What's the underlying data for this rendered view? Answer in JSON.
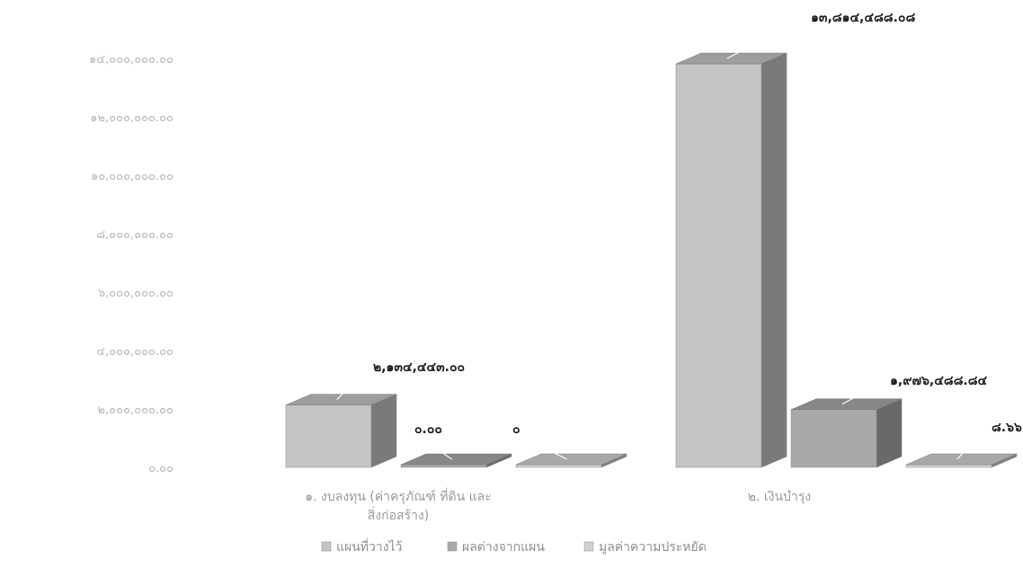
{
  "chart_data": {
    "type": "bar",
    "title": "",
    "xlabel": "",
    "ylabel": "",
    "ylim": [
      0,
      14000000
    ],
    "y_ticks": [
      "0.00",
      "2,000,000.00",
      "4,000,000.00",
      "6,000,000.00",
      "8,000,000.00",
      "10,000,000.00",
      "12,000,000.00",
      "14,000,000.00"
    ],
    "y_tick_labels": [
      "๐.๐๐",
      "๒,๐๐๐,๐๐๐.๐๐",
      "๔,๐๐๐,๐๐๐.๐๐",
      "๖,๐๐๐,๐๐๐.๐๐",
      "๘,๐๐๐,๐๐๐.๐๐",
      "๑๐,๐๐๐,๐๐๐.๐๐",
      "๑๒,๐๐๐,๐๐๐.๐๐",
      "๑๔,๐๐๐,๐๐๐.๐๐"
    ],
    "categories": [
      [
        "๑. งบลงทุน (ค่าครุภัณฑ์ ที่ดิน และ",
        "สิ่งก่อสร้าง)"
      ],
      [
        "๒. เงินบำรุง"
      ]
    ],
    "series": [
      {
        "name": "แผนที่วางไว้",
        "values": [
          2134443.0,
          13814488.08
        ],
        "labels": [
          "๒,๑๓๔,๔๔๓.๐๐",
          "๑๓,๘๑๔,๔๘๘.๐๘"
        ],
        "color": "#c4c4c4"
      },
      {
        "name": "ผลต่างจากแผน",
        "values": [
          0.0,
          1976488.84
        ],
        "labels": [
          "๐.๐๐",
          "๑,๙๗๖,๔๘๘.๘๔"
        ],
        "color": "#a9a9a9"
      },
      {
        "name": "มูลค่าความประหยัด",
        "values": [
          0,
          8.66
        ],
        "labels": [
          "๐",
          "๘.๖๖"
        ],
        "color": "#d2d2d2"
      }
    ],
    "grid": false,
    "legend_position": "bottom",
    "style": "3d-clustered-column"
  }
}
